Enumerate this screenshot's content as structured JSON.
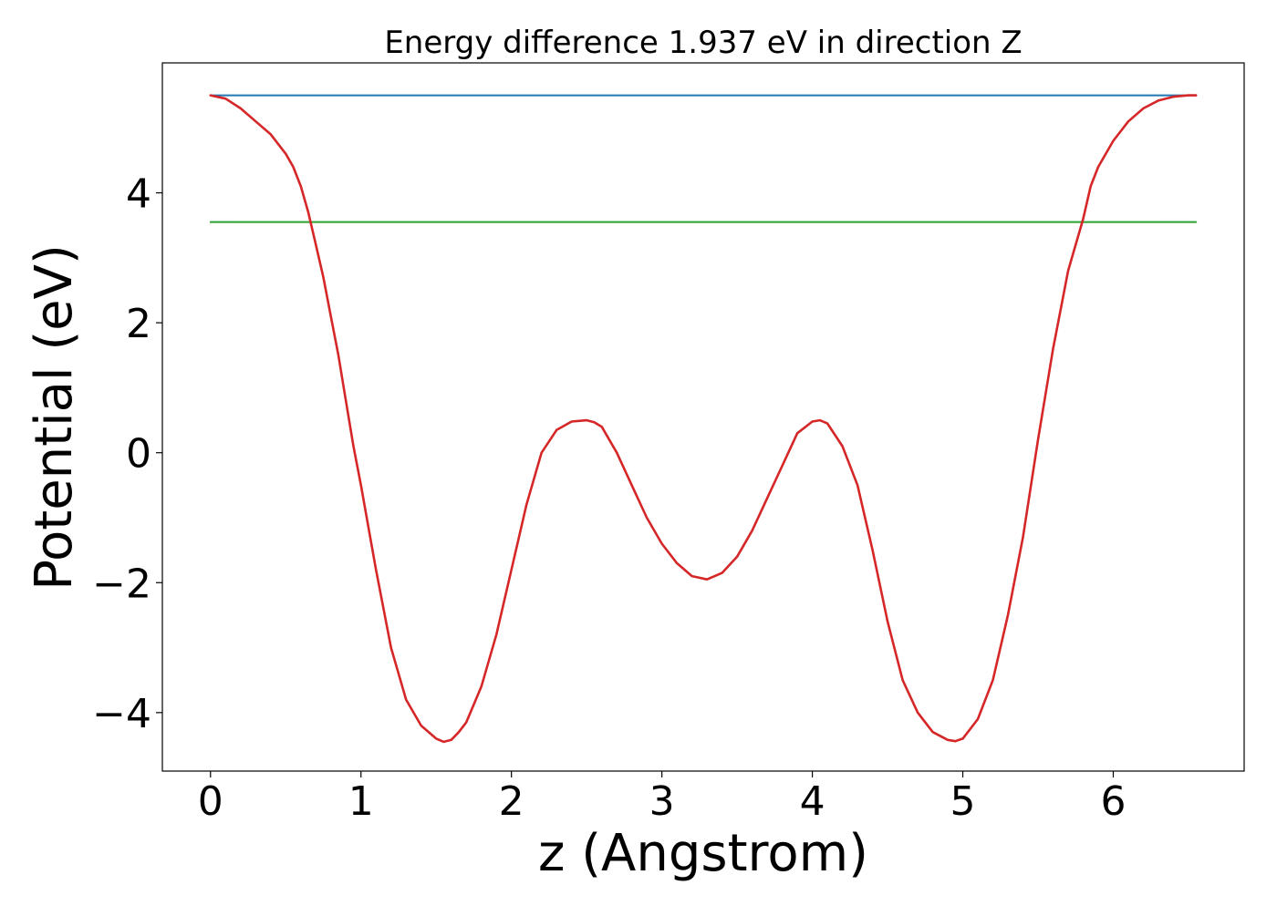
{
  "chart_data": {
    "type": "line",
    "title": "Energy difference 1.937 eV in direction Z",
    "xlabel": "z (Angstrom)",
    "ylabel": "Potential (eV)",
    "xlim": [
      -0.32,
      6.87
    ],
    "ylim": [
      -4.9,
      6.0
    ],
    "xticks": [
      0,
      1,
      2,
      3,
      4,
      5,
      6
    ],
    "yticks": [
      -4,
      -2,
      0,
      2,
      4
    ],
    "xtick_labels": [
      "0",
      "1",
      "2",
      "3",
      "4",
      "5",
      "6"
    ],
    "ytick_labels": [
      "−4",
      "−2",
      "0",
      "2",
      "4"
    ],
    "grid": false,
    "legend": "none",
    "series": [
      {
        "color": "#d62728",
        "x": [
          0,
          0.1,
          0.2,
          0.3,
          0.4,
          0.5,
          0.55,
          0.6,
          0.65,
          0.7,
          0.75,
          0.8,
          0.85,
          0.9,
          0.95,
          1.0,
          1.1,
          1.2,
          1.3,
          1.4,
          1.5,
          1.55,
          1.6,
          1.65,
          1.7,
          1.8,
          1.9,
          2.0,
          2.1,
          2.2,
          2.3,
          2.4,
          2.5,
          2.55,
          2.6,
          2.7,
          2.8,
          2.9,
          3.0,
          3.1,
          3.2,
          3.3,
          3.4,
          3.5,
          3.6,
          3.7,
          3.8,
          3.9,
          4.0,
          4.05,
          4.1,
          4.2,
          4.3,
          4.4,
          4.5,
          4.6,
          4.7,
          4.8,
          4.9,
          4.95,
          5.0,
          5.1,
          5.2,
          5.3,
          5.4,
          5.5,
          5.6,
          5.7,
          5.8,
          5.85,
          5.9,
          6.0,
          6.1,
          6.2,
          6.3,
          6.4,
          6.5,
          6.55
        ],
        "y": [
          5.5,
          5.45,
          5.3,
          5.1,
          4.9,
          4.6,
          4.4,
          4.1,
          3.7,
          3.2,
          2.7,
          2.1,
          1.5,
          0.8,
          0.1,
          -0.5,
          -1.8,
          -3.0,
          -3.8,
          -4.2,
          -4.4,
          -4.45,
          -4.42,
          -4.3,
          -4.15,
          -3.6,
          -2.8,
          -1.8,
          -0.8,
          0.0,
          0.35,
          0.48,
          0.5,
          0.47,
          0.4,
          0.0,
          -0.5,
          -1.0,
          -1.4,
          -1.7,
          -1.9,
          -1.95,
          -1.85,
          -1.6,
          -1.2,
          -0.7,
          -0.2,
          0.3,
          0.48,
          0.5,
          0.45,
          0.1,
          -0.5,
          -1.5,
          -2.6,
          -3.5,
          -4.0,
          -4.3,
          -4.42,
          -4.44,
          -4.4,
          -4.1,
          -3.5,
          -2.5,
          -1.3,
          0.2,
          1.6,
          2.8,
          3.6,
          4.1,
          4.4,
          4.8,
          5.1,
          5.3,
          5.42,
          5.48,
          5.5,
          5.5
        ]
      },
      {
        "color": "#1f77b4",
        "x": [
          0,
          6.55
        ],
        "y": [
          5.5,
          5.5
        ]
      },
      {
        "color": "#2ca02c",
        "x": [
          0,
          6.55
        ],
        "y": [
          3.55,
          3.55
        ]
      }
    ]
  }
}
